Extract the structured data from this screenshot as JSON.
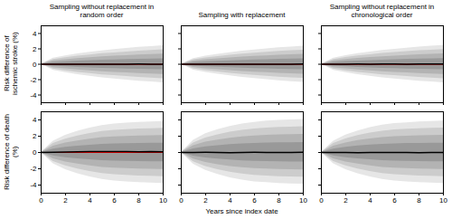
{
  "chart_data": [
    {
      "type": "area",
      "title": "Sampling without replacement in random order",
      "y_label": "Risk difference of ischemic stroke (%)",
      "x": [
        0,
        1,
        2,
        3,
        4,
        5,
        6,
        7,
        8,
        9,
        10
      ],
      "xlim": [
        0,
        10
      ],
      "xticks": [
        0,
        2,
        4,
        6,
        8,
        10
      ],
      "ylim": [
        -5,
        5
      ],
      "yticks": [
        -4,
        -2,
        0,
        2,
        4
      ],
      "tick_labels": "y",
      "bands": [
        {
          "color": "#e6e6e6",
          "lower": [
            0,
            -0.8,
            -1.1,
            -1.35,
            -1.55,
            -1.75,
            -1.9,
            -2.05,
            -2.2,
            -2.3,
            -2.4
          ],
          "upper": [
            0,
            0.8,
            1.1,
            1.35,
            1.55,
            1.75,
            1.9,
            2.05,
            2.2,
            2.3,
            2.4
          ]
        },
        {
          "color": "#cccccc",
          "lower": [
            0,
            -0.62,
            -0.86,
            -1.05,
            -1.21,
            -1.37,
            -1.48,
            -1.6,
            -1.72,
            -1.79,
            -1.87
          ],
          "upper": [
            0,
            0.62,
            0.86,
            1.05,
            1.21,
            1.37,
            1.48,
            1.6,
            1.72,
            1.79,
            1.87
          ]
        },
        {
          "color": "#b3b3b3",
          "lower": [
            0,
            -0.44,
            -0.6,
            -0.74,
            -0.85,
            -0.96,
            -1.05,
            -1.13,
            -1.21,
            -1.27,
            -1.32
          ],
          "upper": [
            0,
            0.44,
            0.6,
            0.74,
            0.85,
            0.96,
            1.05,
            1.13,
            1.21,
            1.27,
            1.32
          ]
        },
        {
          "color": "#999999",
          "lower": [
            0,
            -0.24,
            -0.33,
            -0.41,
            -0.47,
            -0.53,
            -0.57,
            -0.62,
            -0.66,
            -0.69,
            -0.72
          ],
          "upper": [
            0,
            0.24,
            0.33,
            0.41,
            0.47,
            0.53,
            0.57,
            0.62,
            0.66,
            0.69,
            0.72
          ]
        }
      ],
      "median": {
        "color": "#000000",
        "values": [
          0,
          0,
          0.01,
          0,
          0.01,
          0,
          0,
          0.01,
          0.02,
          0.01,
          0.01
        ]
      },
      "reference": {
        "value": 0,
        "color": "#ff0000"
      }
    },
    {
      "type": "area",
      "title": "Sampling with replacement",
      "x": [
        0,
        1,
        2,
        3,
        4,
        5,
        6,
        7,
        8,
        9,
        10
      ],
      "xlim": [
        0,
        10
      ],
      "xticks": [
        0,
        2,
        4,
        6,
        8,
        10
      ],
      "ylim": [
        -5,
        5
      ],
      "yticks": [
        -4,
        -2,
        0,
        2,
        4
      ],
      "tick_labels": false,
      "bands": [
        {
          "color": "#e6e6e6",
          "lower": [
            0,
            -0.75,
            -1.05,
            -1.3,
            -1.5,
            -1.7,
            -1.85,
            -2.0,
            -2.15,
            -2.25,
            -2.35
          ],
          "upper": [
            0,
            0.75,
            1.05,
            1.3,
            1.5,
            1.7,
            1.85,
            2.0,
            2.15,
            2.25,
            2.35
          ]
        },
        {
          "color": "#cccccc",
          "lower": [
            0,
            -0.59,
            -0.82,
            -1.01,
            -1.17,
            -1.33,
            -1.44,
            -1.56,
            -1.68,
            -1.76,
            -1.83
          ],
          "upper": [
            0,
            0.59,
            0.82,
            1.01,
            1.17,
            1.33,
            1.44,
            1.56,
            1.68,
            1.76,
            1.83
          ]
        },
        {
          "color": "#b3b3b3",
          "lower": [
            0,
            -0.41,
            -0.58,
            -0.72,
            -0.83,
            -0.94,
            -1.02,
            -1.1,
            -1.18,
            -1.24,
            -1.29
          ],
          "upper": [
            0,
            0.41,
            0.58,
            0.72,
            0.83,
            0.94,
            1.02,
            1.1,
            1.18,
            1.24,
            1.29
          ]
        },
        {
          "color": "#999999",
          "lower": [
            0,
            -0.23,
            -0.32,
            -0.39,
            -0.45,
            -0.51,
            -0.56,
            -0.6,
            -0.65,
            -0.68,
            -0.71
          ],
          "upper": [
            0,
            0.23,
            0.32,
            0.39,
            0.45,
            0.51,
            0.56,
            0.6,
            0.65,
            0.68,
            0.71
          ]
        }
      ],
      "median": {
        "color": "#000000",
        "values": [
          0,
          0.01,
          0,
          0.01,
          0,
          -0.01,
          0,
          0.01,
          0,
          0.01,
          0.02
        ]
      },
      "reference": {
        "value": 0,
        "color": "#ff0000"
      }
    },
    {
      "type": "area",
      "title": "Sampling without replacement in chronological order",
      "x": [
        0,
        1,
        2,
        3,
        4,
        5,
        6,
        7,
        8,
        9,
        10
      ],
      "xlim": [
        0,
        10
      ],
      "xticks": [
        0,
        2,
        4,
        6,
        8,
        10
      ],
      "ylim": [
        -5,
        5
      ],
      "yticks": [
        -4,
        -2,
        0,
        2,
        4
      ],
      "tick_labels": false,
      "bands": [
        {
          "color": "#e6e6e6",
          "lower": [
            0,
            -0.8,
            -1.1,
            -1.35,
            -1.55,
            -1.75,
            -1.9,
            -2.05,
            -2.2,
            -2.3,
            -2.4
          ],
          "upper": [
            0,
            0.8,
            1.12,
            1.38,
            1.58,
            1.78,
            1.95,
            2.1,
            2.25,
            2.35,
            2.45
          ]
        },
        {
          "color": "#cccccc",
          "lower": [
            0,
            -0.62,
            -0.86,
            -1.05,
            -1.21,
            -1.37,
            -1.48,
            -1.6,
            -1.72,
            -1.79,
            -1.87
          ],
          "upper": [
            0,
            0.63,
            0.88,
            1.08,
            1.24,
            1.4,
            1.52,
            1.64,
            1.76,
            1.83,
            1.91
          ]
        },
        {
          "color": "#b3b3b3",
          "lower": [
            0,
            -0.44,
            -0.6,
            -0.74,
            -0.85,
            -0.96,
            -1.05,
            -1.13,
            -1.21,
            -1.27,
            -1.32
          ],
          "upper": [
            0,
            0.45,
            0.62,
            0.76,
            0.87,
            0.98,
            1.07,
            1.16,
            1.24,
            1.3,
            1.35
          ]
        },
        {
          "color": "#999999",
          "lower": [
            0,
            -0.24,
            -0.33,
            -0.41,
            -0.47,
            -0.53,
            -0.57,
            -0.62,
            -0.66,
            -0.69,
            -0.72
          ],
          "upper": [
            0,
            0.25,
            0.34,
            0.42,
            0.48,
            0.54,
            0.59,
            0.64,
            0.68,
            0.71,
            0.74
          ]
        }
      ],
      "median": {
        "color": "#000000",
        "values": [
          0,
          0.01,
          0.01,
          0.02,
          0.01,
          0.02,
          0.02,
          0.01,
          0.02,
          0.03,
          0.02
        ]
      },
      "reference": {
        "value": 0,
        "color": "#ff0000"
      }
    },
    {
      "type": "area",
      "y_label": "Risk difference of death (%)",
      "x": [
        0,
        1,
        2,
        3,
        4,
        5,
        6,
        7,
        8,
        9,
        10
      ],
      "xlim": [
        0,
        10
      ],
      "xticks": [
        0,
        2,
        4,
        6,
        8,
        10
      ],
      "ylim": [
        -5,
        5
      ],
      "yticks": [
        -4,
        -2,
        0,
        2,
        4
      ],
      "tick_labels": true,
      "bands": [
        {
          "color": "#e6e6e6",
          "lower": [
            0,
            -1.4,
            -2.1,
            -2.6,
            -3.0,
            -3.3,
            -3.5,
            -3.6,
            -3.7,
            -3.75,
            -3.8
          ],
          "upper": [
            0,
            1.4,
            2.1,
            2.6,
            3.0,
            3.3,
            3.5,
            3.6,
            3.7,
            3.75,
            3.8
          ]
        },
        {
          "color": "#cccccc",
          "lower": [
            0,
            -1.1,
            -1.64,
            -2.03,
            -2.34,
            -2.57,
            -2.73,
            -2.81,
            -2.89,
            -2.93,
            -2.96
          ],
          "upper": [
            0,
            1.1,
            1.64,
            2.03,
            2.34,
            2.57,
            2.73,
            2.81,
            2.89,
            2.93,
            2.96
          ]
        },
        {
          "color": "#b3b3b3",
          "lower": [
            0,
            -0.77,
            -1.16,
            -1.43,
            -1.65,
            -1.82,
            -1.93,
            -1.98,
            -2.04,
            -2.06,
            -2.09
          ],
          "upper": [
            0,
            0.77,
            1.16,
            1.43,
            1.65,
            1.82,
            1.93,
            1.98,
            2.04,
            2.06,
            2.09
          ]
        },
        {
          "color": "#999999",
          "lower": [
            0,
            -0.42,
            -0.63,
            -0.78,
            -0.9,
            -0.99,
            -1.05,
            -1.08,
            -1.11,
            -1.13,
            -1.14
          ],
          "upper": [
            0,
            0.42,
            0.63,
            0.78,
            0.9,
            0.99,
            1.05,
            1.08,
            1.11,
            1.13,
            1.14
          ]
        }
      ],
      "median": {
        "color": "#000000",
        "values": [
          0,
          0.02,
          0.05,
          0.08,
          0.1,
          0.1,
          0.12,
          0.1,
          0.08,
          0.1,
          0.08
        ]
      },
      "reference": {
        "value": 0,
        "color": "#ff0000"
      }
    },
    {
      "type": "area",
      "x_label": "Years since index date",
      "x": [
        0,
        1,
        2,
        3,
        4,
        5,
        6,
        7,
        8,
        9,
        10
      ],
      "xlim": [
        0,
        10
      ],
      "xticks": [
        0,
        2,
        4,
        6,
        8,
        10
      ],
      "ylim": [
        -5,
        5
      ],
      "yticks": [
        -4,
        -2,
        0,
        2,
        4
      ],
      "tick_labels": "x",
      "bands": [
        {
          "color": "#e6e6e6",
          "lower": [
            0,
            -1.45,
            -2.2,
            -2.7,
            -3.1,
            -3.4,
            -3.6,
            -3.7,
            -3.8,
            -3.85,
            -3.9
          ],
          "upper": [
            0,
            1.5,
            2.3,
            2.8,
            3.2,
            3.5,
            3.7,
            3.85,
            3.95,
            4.0,
            4.05
          ]
        },
        {
          "color": "#cccccc",
          "lower": [
            0,
            -1.13,
            -1.72,
            -2.11,
            -2.42,
            -2.65,
            -2.81,
            -2.89,
            -2.96,
            -3.0,
            -3.04
          ],
          "upper": [
            0,
            1.17,
            1.79,
            2.18,
            2.5,
            2.73,
            2.89,
            3.0,
            3.08,
            3.12,
            3.16
          ]
        },
        {
          "color": "#b3b3b3",
          "lower": [
            0,
            -0.8,
            -1.21,
            -1.49,
            -1.71,
            -1.87,
            -1.98,
            -2.04,
            -2.09,
            -2.12,
            -2.15
          ],
          "upper": [
            0,
            0.83,
            1.27,
            1.54,
            1.76,
            1.93,
            2.04,
            2.12,
            2.17,
            2.2,
            2.23
          ]
        },
        {
          "color": "#999999",
          "lower": [
            0,
            -0.44,
            -0.66,
            -0.81,
            -0.93,
            -1.02,
            -1.08,
            -1.11,
            -1.14,
            -1.16,
            -1.17
          ],
          "upper": [
            0,
            0.45,
            0.69,
            0.84,
            0.96,
            1.05,
            1.11,
            1.16,
            1.19,
            1.2,
            1.22
          ]
        }
      ],
      "median": {
        "color": "#000000",
        "values": [
          0,
          0.01,
          0.02,
          0,
          -0.02,
          0,
          0.02,
          0.01,
          0,
          0.01,
          0.02
        ]
      },
      "reference": {
        "value": 0,
        "color": "#ff0000"
      }
    },
    {
      "type": "area",
      "x": [
        0,
        1,
        2,
        3,
        4,
        5,
        6,
        7,
        8,
        9,
        10
      ],
      "xlim": [
        0,
        10
      ],
      "xticks": [
        0,
        2,
        4,
        6,
        8,
        10
      ],
      "ylim": [
        -5,
        5
      ],
      "yticks": [
        -4,
        -2,
        0,
        2,
        4
      ],
      "tick_labels": "x",
      "bands": [
        {
          "color": "#e6e6e6",
          "lower": [
            0,
            -1.4,
            -2.1,
            -2.6,
            -3.0,
            -3.3,
            -3.5,
            -3.6,
            -3.7,
            -3.75,
            -3.8
          ],
          "upper": [
            0,
            1.4,
            2.15,
            2.65,
            3.05,
            3.35,
            3.55,
            3.65,
            3.75,
            3.8,
            3.85
          ]
        },
        {
          "color": "#cccccc",
          "lower": [
            0,
            -1.1,
            -1.64,
            -2.03,
            -2.34,
            -2.57,
            -2.73,
            -2.81,
            -2.89,
            -2.93,
            -2.96
          ],
          "upper": [
            0,
            1.1,
            1.68,
            2.07,
            2.38,
            2.61,
            2.77,
            2.85,
            2.93,
            2.96,
            3.0
          ]
        },
        {
          "color": "#b3b3b3",
          "lower": [
            0,
            -0.77,
            -1.16,
            -1.43,
            -1.65,
            -1.82,
            -1.93,
            -1.98,
            -2.04,
            -2.06,
            -2.09
          ],
          "upper": [
            0,
            0.77,
            1.18,
            1.46,
            1.68,
            1.84,
            1.95,
            2.01,
            2.06,
            2.09,
            2.11
          ]
        },
        {
          "color": "#999999",
          "lower": [
            0,
            -0.42,
            -0.63,
            -0.78,
            -0.9,
            -0.99,
            -1.05,
            -1.08,
            -1.11,
            -1.13,
            -1.14
          ],
          "upper": [
            0,
            0.42,
            0.64,
            0.8,
            0.92,
            1.0,
            1.06,
            1.1,
            1.12,
            1.14,
            1.15
          ]
        }
      ],
      "median": {
        "color": "#000000",
        "values": [
          0,
          0,
          -0.01,
          -0.02,
          0,
          0.01,
          0,
          -0.01,
          -0.02,
          0,
          0.01
        ]
      },
      "reference": {
        "value": 0,
        "color": "#ff0000"
      }
    }
  ]
}
